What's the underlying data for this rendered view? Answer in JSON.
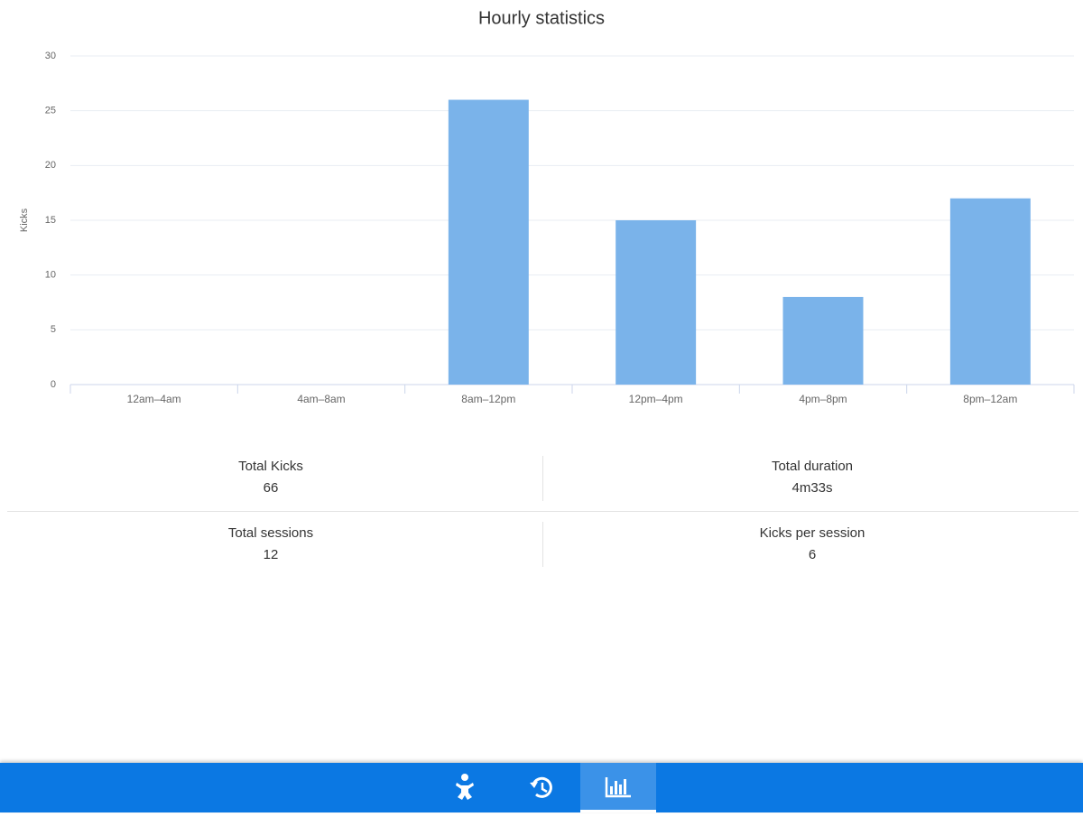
{
  "chart_data": {
    "type": "bar",
    "title": "Hourly statistics",
    "y_label": "Kicks",
    "categories": [
      "12am–4am",
      "4am–8am",
      "8am–12pm",
      "12pm–4pm",
      "4pm–8pm",
      "8pm–12am"
    ],
    "values": [
      0,
      0,
      26,
      15,
      8,
      17
    ],
    "color": "#7ab3ea",
    "ylim": [
      0,
      30
    ],
    "yticks": [
      0,
      5,
      10,
      15,
      20,
      25,
      30
    ],
    "grid": true
  },
  "stats": [
    {
      "label": "Total Kicks",
      "value": 66
    },
    {
      "label": "Total duration",
      "value": "4m33s"
    },
    {
      "label": "Total sessions",
      "value": 12
    },
    {
      "label": "Kicks per session",
      "value": 6
    }
  ]
}
